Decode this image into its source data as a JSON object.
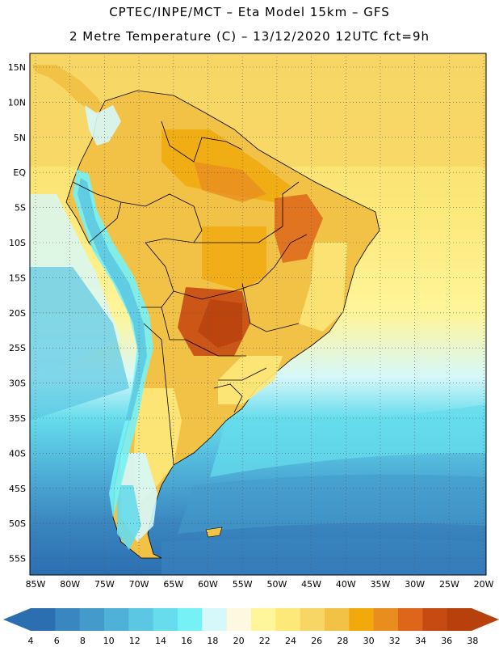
{
  "header": {
    "line1": "CPTEC/INPE/MCT –  Eta Model 15km – GFS",
    "line2": "2 Metre Temperature (C) – 13/12/2020 12UTC fct=9h"
  },
  "axes": {
    "lat_labels": [
      "15N",
      "10N",
      "5N",
      "EQ",
      "5S",
      "10S",
      "15S",
      "20S",
      "25S",
      "30S",
      "35S",
      "40S",
      "45S",
      "50S",
      "55S"
    ],
    "lon_labels": [
      "85W",
      "80W",
      "75W",
      "70W",
      "65W",
      "60W",
      "55W",
      "50W",
      "45W",
      "40W",
      "35W",
      "30W",
      "25W",
      "20W"
    ]
  },
  "colorbar": {
    "labels": [
      "4",
      "6",
      "8",
      "10",
      "12",
      "14",
      "16",
      "18",
      "20",
      "22",
      "24",
      "26",
      "28",
      "30",
      "32",
      "34",
      "36",
      "38"
    ],
    "colors": [
      "#2c6fb1",
      "#3a86c0",
      "#449bcb",
      "#4fb1d8",
      "#5bc7e2",
      "#66dcec",
      "#76f2f7",
      "#d6f8fb",
      "#fff8e0",
      "#fff59a",
      "#fde87a",
      "#f7d665",
      "#f2c247",
      "#f1a90c",
      "#ea8d1f",
      "#dd661a",
      "#c74a12",
      "#b8400d"
    ],
    "low_color": "#2c6fb1",
    "high_color": "#b8400d"
  }
}
